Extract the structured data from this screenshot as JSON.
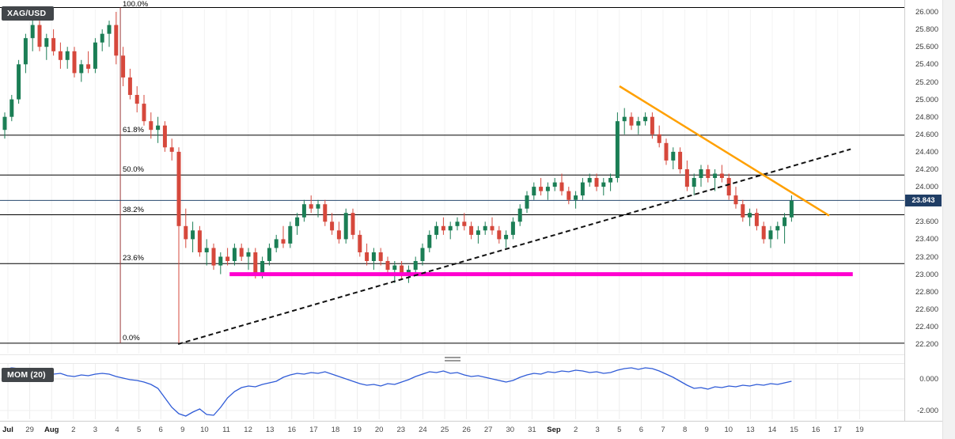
{
  "symbol_badge": "XAG/USD",
  "indicator_badge": "MOM (20)",
  "price_axis": {
    "labels": [
      "26.000",
      "25.800",
      "25.600",
      "25.400",
      "25.200",
      "25.000",
      "24.800",
      "24.600",
      "24.400",
      "24.200",
      "24.000",
      "23.600",
      "23.400",
      "23.200",
      "23.000",
      "22.800",
      "22.600",
      "22.400",
      "22.200"
    ],
    "current_price_badge": "23.843"
  },
  "mom_axis": {
    "labels": [
      "0.000",
      "-2.000"
    ]
  },
  "date_axis": [
    "Jul",
    "29",
    "Aug",
    "2",
    "3",
    "4",
    "5",
    "6",
    "9",
    "10",
    "11",
    "12",
    "13",
    "16",
    "17",
    "18",
    "19",
    "20",
    "23",
    "24",
    "25",
    "26",
    "27",
    "30",
    "31",
    "Sep",
    "2",
    "3",
    "5",
    "6",
    "7",
    "8",
    "9",
    "10",
    "13",
    "14",
    "15",
    "16",
    "17",
    "19"
  ],
  "fib_levels": [
    {
      "label": "100.0%",
      "price": 26.05
    },
    {
      "label": "61.8%",
      "price": 24.59
    },
    {
      "label": "50.0%",
      "price": 24.135
    },
    {
      "label": "38.2%",
      "price": 23.68
    },
    {
      "label": "23.6%",
      "price": 23.12
    },
    {
      "label": "0.0%",
      "price": 22.21
    }
  ],
  "colors": {
    "candle_up": "#1b7e55",
    "candle_down": "#d6483c",
    "momentum_line": "#2f5bd7",
    "fib_line": "#000000",
    "fib_anchor_vertical": "#9d3c3c",
    "current_price_line": "#27486e",
    "badge_bg": "#42464a",
    "price_tag_bg": "#203e66",
    "trendline_orange": "#ffa000",
    "support_magenta": "#ff00d0"
  },
  "chart_data": {
    "type": "candlestick",
    "symbol": "XAG/USD",
    "ylim": [
      22.2,
      26.0
    ],
    "price_tick_step": 0.2,
    "current_price": 23.843,
    "legend_position": "top-left",
    "grid": "faint-vertical",
    "candles": [
      [
        24.65,
        24.85,
        24.55,
        24.8
      ],
      [
        24.8,
        25.05,
        24.75,
        25.0
      ],
      [
        25.0,
        25.45,
        24.95,
        25.4
      ],
      [
        25.4,
        25.75,
        25.3,
        25.7
      ],
      [
        25.7,
        25.95,
        25.55,
        25.85
      ],
      [
        25.85,
        25.9,
        25.55,
        25.6
      ],
      [
        25.6,
        25.75,
        25.45,
        25.7
      ],
      [
        25.7,
        25.8,
        25.5,
        25.55
      ],
      [
        25.55,
        25.65,
        25.35,
        25.45
      ],
      [
        25.45,
        25.6,
        25.35,
        25.55
      ],
      [
        25.55,
        25.6,
        25.25,
        25.3
      ],
      [
        25.3,
        25.45,
        25.2,
        25.4
      ],
      [
        25.4,
        25.55,
        25.3,
        25.35
      ],
      [
        25.35,
        25.7,
        25.3,
        25.65
      ],
      [
        25.65,
        25.8,
        25.55,
        25.75
      ],
      [
        25.75,
        25.9,
        25.6,
        25.85
      ],
      [
        25.85,
        26.0,
        25.4,
        25.5
      ],
      [
        25.5,
        25.6,
        25.15,
        25.25
      ],
      [
        25.25,
        25.35,
        25.0,
        25.05
      ],
      [
        25.05,
        25.15,
        24.85,
        24.95
      ],
      [
        24.95,
        25.05,
        24.7,
        24.75
      ],
      [
        24.75,
        24.85,
        24.55,
        24.65
      ],
      [
        24.65,
        24.8,
        24.5,
        24.7
      ],
      [
        24.7,
        24.75,
        24.4,
        24.45
      ],
      [
        24.45,
        24.55,
        24.3,
        24.4
      ],
      [
        24.4,
        24.45,
        22.21,
        23.55
      ],
      [
        23.55,
        23.75,
        23.3,
        23.4
      ],
      [
        23.4,
        23.6,
        23.25,
        23.5
      ],
      [
        23.5,
        23.55,
        23.2,
        23.25
      ],
      [
        23.25,
        23.4,
        23.1,
        23.3
      ],
      [
        23.3,
        23.35,
        23.05,
        23.1
      ],
      [
        23.1,
        23.25,
        23.0,
        23.2
      ],
      [
        23.2,
        23.3,
        23.1,
        23.15
      ],
      [
        23.15,
        23.35,
        23.1,
        23.3
      ],
      [
        23.3,
        23.35,
        23.15,
        23.2
      ],
      [
        23.2,
        23.3,
        23.05,
        23.25
      ],
      [
        23.25,
        23.3,
        22.95,
        23.0
      ],
      [
        23.0,
        23.2,
        22.95,
        23.15
      ],
      [
        23.15,
        23.35,
        23.1,
        23.3
      ],
      [
        23.3,
        23.45,
        23.25,
        23.4
      ],
      [
        23.4,
        23.55,
        23.3,
        23.35
      ],
      [
        23.35,
        23.6,
        23.3,
        23.55
      ],
      [
        23.55,
        23.7,
        23.45,
        23.65
      ],
      [
        23.65,
        23.85,
        23.6,
        23.8
      ],
      [
        23.8,
        23.9,
        23.7,
        23.75
      ],
      [
        23.75,
        23.85,
        23.65,
        23.8
      ],
      [
        23.8,
        23.85,
        23.55,
        23.6
      ],
      [
        23.6,
        23.7,
        23.45,
        23.5
      ],
      [
        23.5,
        23.6,
        23.35,
        23.4
      ],
      [
        23.4,
        23.75,
        23.35,
        23.7
      ],
      [
        23.7,
        23.75,
        23.4,
        23.45
      ],
      [
        23.45,
        23.5,
        23.2,
        23.25
      ],
      [
        23.25,
        23.35,
        23.1,
        23.15
      ],
      [
        23.15,
        23.3,
        23.05,
        23.25
      ],
      [
        23.25,
        23.3,
        23.1,
        23.15
      ],
      [
        23.15,
        23.2,
        23.0,
        23.05
      ],
      [
        23.05,
        23.15,
        22.9,
        23.1
      ],
      [
        23.1,
        23.15,
        22.95,
        23.0
      ],
      [
        23.0,
        23.1,
        22.9,
        23.05
      ],
      [
        23.05,
        23.2,
        23.0,
        23.15
      ],
      [
        23.15,
        23.35,
        23.1,
        23.3
      ],
      [
        23.3,
        23.5,
        23.25,
        23.45
      ],
      [
        23.45,
        23.6,
        23.4,
        23.55
      ],
      [
        23.55,
        23.65,
        23.45,
        23.5
      ],
      [
        23.5,
        23.6,
        23.4,
        23.55
      ],
      [
        23.55,
        23.65,
        23.5,
        23.6
      ],
      [
        23.6,
        23.7,
        23.5,
        23.55
      ],
      [
        23.55,
        23.6,
        23.4,
        23.45
      ],
      [
        23.45,
        23.55,
        23.35,
        23.5
      ],
      [
        23.5,
        23.6,
        23.45,
        23.55
      ],
      [
        23.55,
        23.65,
        23.45,
        23.5
      ],
      [
        23.5,
        23.55,
        23.35,
        23.4
      ],
      [
        23.4,
        23.5,
        23.3,
        23.45
      ],
      [
        23.45,
        23.65,
        23.4,
        23.6
      ],
      [
        23.6,
        23.8,
        23.55,
        23.75
      ],
      [
        23.75,
        23.95,
        23.7,
        23.9
      ],
      [
        23.9,
        24.05,
        23.85,
        24.0
      ],
      [
        24.0,
        24.1,
        23.9,
        23.95
      ],
      [
        23.95,
        24.05,
        23.85,
        24.0
      ],
      [
        24.0,
        24.1,
        23.95,
        24.05
      ],
      [
        24.05,
        24.15,
        23.9,
        23.95
      ],
      [
        23.95,
        24.0,
        23.8,
        23.85
      ],
      [
        23.85,
        23.95,
        23.75,
        23.9
      ],
      [
        23.9,
        24.1,
        23.85,
        24.05
      ],
      [
        24.05,
        24.15,
        24.0,
        24.1
      ],
      [
        24.1,
        24.15,
        23.95,
        24.0
      ],
      [
        24.0,
        24.1,
        23.9,
        24.05
      ],
      [
        24.05,
        24.15,
        23.95,
        24.1
      ],
      [
        24.1,
        24.85,
        24.05,
        24.75
      ],
      [
        24.75,
        24.9,
        24.6,
        24.8
      ],
      [
        24.8,
        24.85,
        24.65,
        24.7
      ],
      [
        24.7,
        24.8,
        24.6,
        24.75
      ],
      [
        24.75,
        24.85,
        24.7,
        24.8
      ],
      [
        24.8,
        24.85,
        24.55,
        24.6
      ],
      [
        24.6,
        24.7,
        24.45,
        24.5
      ],
      [
        24.5,
        24.55,
        24.25,
        24.3
      ],
      [
        24.3,
        24.45,
        24.2,
        24.4
      ],
      [
        24.4,
        24.45,
        24.15,
        24.2
      ],
      [
        24.2,
        24.3,
        23.95,
        24.0
      ],
      [
        24.0,
        24.15,
        23.9,
        24.1
      ],
      [
        24.1,
        24.25,
        24.0,
        24.2
      ],
      [
        24.2,
        24.25,
        24.05,
        24.1
      ],
      [
        24.1,
        24.2,
        23.95,
        24.15
      ],
      [
        24.15,
        24.25,
        24.05,
        24.1
      ],
      [
        24.1,
        24.15,
        23.85,
        23.9
      ],
      [
        23.9,
        24.0,
        23.75,
        23.8
      ],
      [
        23.8,
        23.85,
        23.6,
        23.65
      ],
      [
        23.65,
        23.75,
        23.55,
        23.7
      ],
      [
        23.7,
        23.75,
        23.5,
        23.55
      ],
      [
        23.55,
        23.6,
        23.35,
        23.4
      ],
      [
        23.4,
        23.55,
        23.3,
        23.5
      ],
      [
        23.5,
        23.6,
        23.4,
        23.55
      ],
      [
        23.55,
        23.7,
        23.35,
        23.65
      ],
      [
        23.65,
        23.9,
        23.6,
        23.84
      ]
    ],
    "momentum": {
      "name": "MOM (20)",
      "values": [
        0.6,
        0.7,
        0.65,
        0.5,
        0.55,
        0.4,
        0.45,
        0.3,
        0.35,
        0.2,
        0.15,
        0.25,
        0.2,
        0.3,
        0.35,
        0.3,
        0.15,
        0.05,
        -0.05,
        -0.1,
        -0.2,
        -0.35,
        -0.6,
        -1.2,
        -1.8,
        -2.2,
        -2.35,
        -2.1,
        -1.9,
        -2.25,
        -2.3,
        -1.8,
        -1.2,
        -0.8,
        -0.55,
        -0.45,
        -0.5,
        -0.35,
        -0.25,
        -0.15,
        0.1,
        0.25,
        0.35,
        0.3,
        0.4,
        0.35,
        0.45,
        0.3,
        0.15,
        0.0,
        -0.15,
        -0.3,
        -0.4,
        -0.35,
        -0.45,
        -0.3,
        -0.35,
        -0.2,
        -0.05,
        0.15,
        0.3,
        0.45,
        0.4,
        0.5,
        0.35,
        0.4,
        0.25,
        0.15,
        0.2,
        0.1,
        0.0,
        -0.1,
        -0.2,
        -0.1,
        0.1,
        0.25,
        0.35,
        0.3,
        0.45,
        0.4,
        0.5,
        0.45,
        0.55,
        0.5,
        0.4,
        0.45,
        0.35,
        0.4,
        0.55,
        0.65,
        0.7,
        0.6,
        0.7,
        0.65,
        0.5,
        0.3,
        0.1,
        -0.15,
        -0.4,
        -0.6,
        -0.55,
        -0.65,
        -0.5,
        -0.55,
        -0.45,
        -0.5,
        -0.4,
        -0.45,
        -0.35,
        -0.4,
        -0.3,
        -0.35,
        -0.25,
        -0.15
      ]
    },
    "trendlines": [
      {
        "name": "ascending-support-dashed",
        "style": "dashed",
        "color": "#111111",
        "width": 2,
        "from": {
          "index": 24.9,
          "price": 22.2
        },
        "to": {
          "index": 121.5,
          "price": 24.43
        }
      },
      {
        "name": "descending-resistance",
        "style": "solid",
        "color": "#ffa000",
        "width": 2.5,
        "from": {
          "index": 88.3,
          "price": 25.15
        },
        "to": {
          "index": 118.4,
          "price": 23.67
        }
      }
    ],
    "support_zone": {
      "price": 23.0,
      "from_index": 32.3,
      "to_index": 121.8,
      "color": "#ff00d0",
      "width": 5
    },
    "fib_anchor_index": 16.6
  }
}
